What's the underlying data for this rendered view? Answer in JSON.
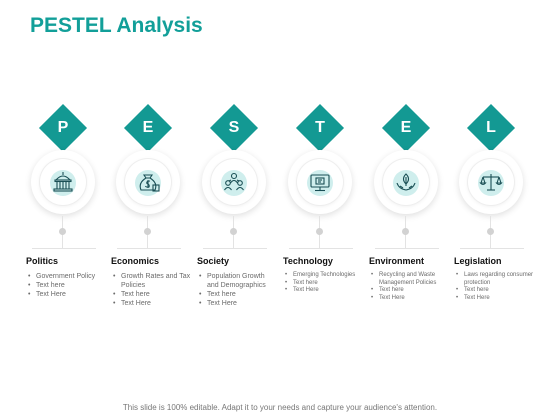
{
  "title": "PESTEL Analysis",
  "footer": "This slide is 100% editable. Adapt it to your needs and capture your audience's attention.",
  "colors": {
    "accent": "#139993",
    "icon_fill": "#cfeeed",
    "title": "#129f99"
  },
  "columns": [
    {
      "letter": "P",
      "heading": "Politics",
      "icon": "capitol-building-icon",
      "bullets": [
        "Government Policy",
        "Text here",
        "Text Here"
      ]
    },
    {
      "letter": "E",
      "heading": "Economics",
      "icon": "money-bag-icon",
      "bullets": [
        "Growth Rates and Tax Policies",
        "Text here",
        "Text Here"
      ]
    },
    {
      "letter": "S",
      "heading": "Society",
      "icon": "people-group-icon",
      "bullets": [
        "Population Growth and Demographics",
        "Text here",
        "Text Here"
      ]
    },
    {
      "letter": "T",
      "heading": "Technology",
      "icon": "computer-monitor-icon",
      "bullets": [
        "Emerging Technologies",
        "Text here",
        "Text Here"
      ]
    },
    {
      "letter": "E",
      "heading": "Environment",
      "icon": "plant-in-hand-icon",
      "bullets": [
        "Recycling and Waste Management Policies",
        "Text here",
        "Text Here"
      ]
    },
    {
      "letter": "L",
      "heading": "Legislation",
      "icon": "scales-of-justice-icon",
      "bullets": [
        "Laws regarding consumer protection",
        "Text here",
        "Text Here"
      ]
    }
  ]
}
